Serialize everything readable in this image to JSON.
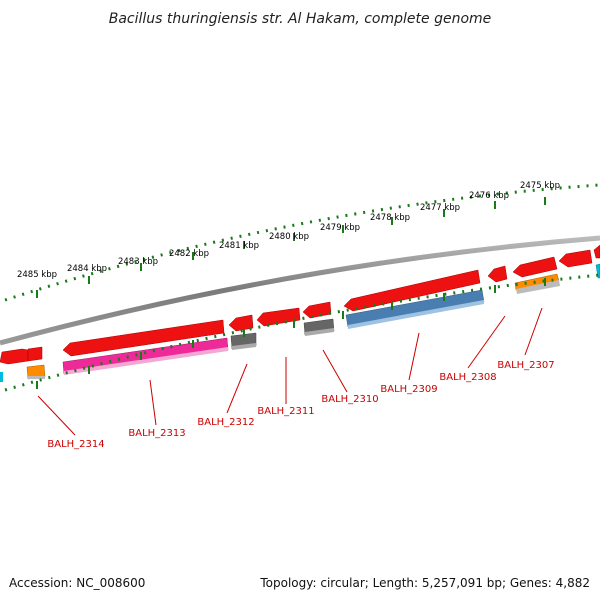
{
  "title": "Bacillus thuringiensis str. Al Hakam, complete genome",
  "ruler": {
    "ticks": [
      "2475 kbp",
      "2476 kbp",
      "2477 kbp",
      "2478 kbp",
      "2479 kbp",
      "2480 kbp",
      "2481 kbp",
      "2482 kbp",
      "2483 kbp",
      "2484 kbp",
      "2485 kbp"
    ]
  },
  "genes": [
    {
      "label": "BALH_2307"
    },
    {
      "label": "BALH_2308"
    },
    {
      "label": "BALH_2309"
    },
    {
      "label": "BALH_2310"
    },
    {
      "label": "BALH_2311"
    },
    {
      "label": "BALH_2312"
    },
    {
      "label": "BALH_2313"
    },
    {
      "label": "BALH_2314"
    }
  ],
  "footer": {
    "accession": "Accession: NC_008600",
    "topology": "Topology: circular; Length: 5,257,091 bp; Genes: 4,882"
  },
  "colors": {
    "cds_red": "#ee1111",
    "pink": "#ee2a99",
    "steel_blue": "#4a7eb0",
    "grey": "#666666",
    "orange": "#ff8c00",
    "cyan": "#00bbdd",
    "ruler_green": "#1a7a1a",
    "backbone": "#888888",
    "label_red": "#cc0000"
  }
}
